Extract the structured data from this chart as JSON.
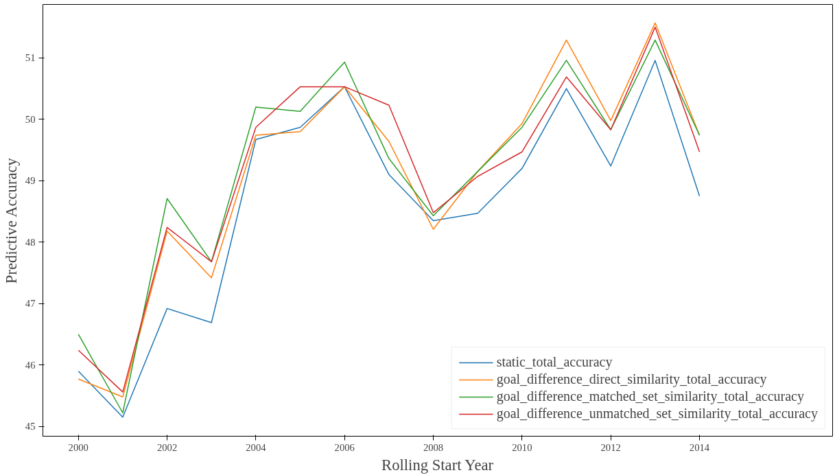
{
  "chart_data": {
    "type": "line",
    "xlabel": "Rolling Start Year",
    "ylabel": "Predictive Accuracy",
    "x": [
      2000,
      2001,
      2002,
      2003,
      2004,
      2005,
      2006,
      2007,
      2008,
      2009,
      2010,
      2011,
      2012,
      2013,
      2014
    ],
    "xlim": [
      1999.2,
      2017.0
    ],
    "xticks": [
      2000,
      2002,
      2004,
      2006,
      2008,
      2010,
      2012,
      2014
    ],
    "ylim": [
      44.84,
      51.87
    ],
    "yticks": [
      45,
      46,
      47,
      48,
      49,
      50,
      51
    ],
    "grid": false,
    "legend": "bottom right",
    "marker": "none",
    "line_style": "solid",
    "series": [
      {
        "name": "static_total_accuracy",
        "color": "#1f77b4",
        "values": [
          45.9,
          45.15,
          46.92,
          46.69,
          49.67,
          49.87,
          50.53,
          49.1,
          48.35,
          48.47,
          49.2,
          50.5,
          49.24,
          50.96,
          48.75
        ]
      },
      {
        "name": "goal_difference_direct_similarity_total_accuracy",
        "color": "#ff7f0e",
        "values": [
          45.77,
          45.48,
          48.18,
          47.42,
          49.74,
          49.8,
          50.53,
          49.64,
          48.21,
          49.15,
          49.93,
          51.29,
          49.98,
          51.57,
          49.74
        ]
      },
      {
        "name": "goal_difference_matched_set_similarity_total_accuracy",
        "color": "#2ca02c",
        "values": [
          46.5,
          45.22,
          48.71,
          47.68,
          50.2,
          50.13,
          50.93,
          49.36,
          48.43,
          49.15,
          49.87,
          50.96,
          49.83,
          51.29,
          49.74
        ]
      },
      {
        "name": "goal_difference_unmatched_set_similarity_total_accuracy",
        "color": "#d62728",
        "values": [
          46.24,
          45.56,
          48.24,
          47.68,
          49.87,
          50.53,
          50.53,
          50.23,
          48.48,
          49.07,
          49.47,
          50.69,
          49.83,
          51.5,
          49.47
        ]
      }
    ]
  }
}
